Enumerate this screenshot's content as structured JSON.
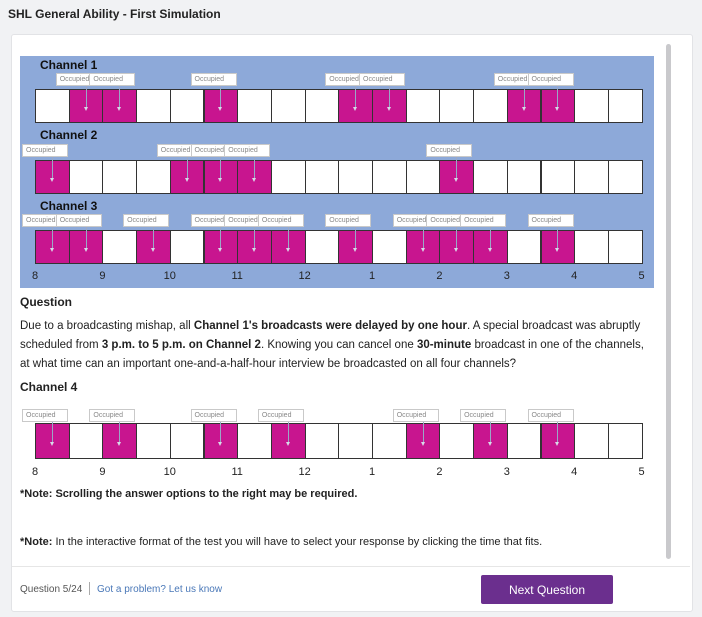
{
  "app": {
    "title": "SHL General Ability - First Simulation"
  },
  "schedule": {
    "occupied_label": "Occupied",
    "time_ticks": [
      "8",
      "9",
      "10",
      "11",
      "12",
      "1",
      "2",
      "3",
      "4",
      "5"
    ],
    "channels": [
      {
        "name": "Channel 1",
        "occupied_slots": [
          1,
          2,
          5,
          9,
          10,
          14,
          15
        ]
      },
      {
        "name": "Channel 2",
        "occupied_slots": [
          0,
          4,
          5,
          6,
          12
        ]
      },
      {
        "name": "Channel 3",
        "occupied_slots": [
          0,
          1,
          3,
          5,
          6,
          7,
          9,
          11,
          12,
          13,
          15
        ]
      }
    ],
    "colors": {
      "panel": "#8da9d9",
      "occupied": "#c8158f",
      "free": "#ffffff"
    }
  },
  "question": {
    "heading": "Question",
    "text_parts": [
      {
        "t": "Due to a broadcasting mishap, all ",
        "b": false
      },
      {
        "t": "Channel 1's broadcasts were delayed by one hour",
        "b": true
      },
      {
        "t": ". A special broadcast was abruptly scheduled from ",
        "b": false
      },
      {
        "t": "3 p.m. to 5 p.m. on Channel 2",
        "b": true
      },
      {
        "t": ". Knowing you can cancel one ",
        "b": false
      },
      {
        "t": "30-minute",
        "b": true
      },
      {
        "t": " broadcast in one of the channels, at what time can an important one-and-a-half-hour interview be broadcasted on all four channels?",
        "b": false
      }
    ]
  },
  "channel4": {
    "name": "Channel 4",
    "occupied_slots": [
      0,
      2,
      5,
      7,
      11,
      13,
      15
    ]
  },
  "notes": {
    "scroll_note": "*Note: Scrolling the answer options to the right may be required.",
    "interactive_prefix": "*Note:",
    "interactive_text": " In the interactive format of the test you will have to select your response by clicking the time that fits."
  },
  "footer": {
    "question_counter": "Question 5/24",
    "problem_link": "Got a problem? Let us know",
    "next_button": "Next Question"
  }
}
